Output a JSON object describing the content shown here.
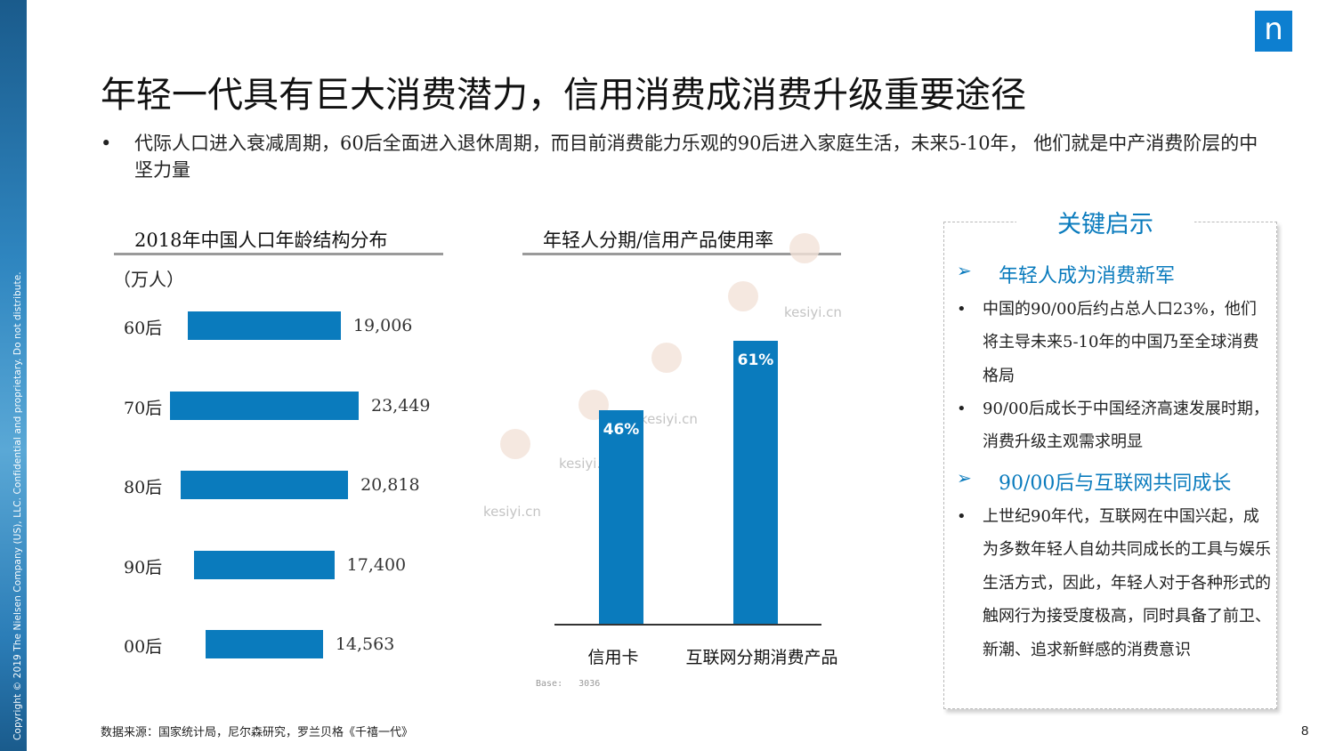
{
  "sidebar": {
    "copyright": "Copyright © 2019 The Nielsen Company (US), LLC. Confidential and proprietary. Do not distribute."
  },
  "logo": {
    "letter": "n"
  },
  "title": "年轻一代具有巨大消费潜力，信用消费成消费升级重要途径",
  "bullet": {
    "marker": "•",
    "text": "代际人口进入衰减周期，60后全面进入退休周期，而目前消费能力乐观的90后进入家庭生活，未来5-10年， 他们就是中产消费阶层的中坚力量"
  },
  "chart_data": [
    {
      "type": "bar",
      "orientation": "horizontal",
      "title": "2018年中国人口年龄结构分布",
      "unit": "（万人）",
      "categories": [
        "60后",
        "70后",
        "80后",
        "90后",
        "00后"
      ],
      "values": [
        19006,
        23449,
        20818,
        17400,
        14563
      ],
      "value_labels": [
        "19,006",
        "23,449",
        "20,818",
        "17,400",
        "14,563"
      ],
      "color": "#0a7bbd"
    },
    {
      "type": "bar",
      "orientation": "vertical",
      "title": "年轻人分期/信用产品使用率",
      "categories": [
        "信用卡",
        "互联网分期消费产品"
      ],
      "values": [
        46,
        61
      ],
      "value_labels": [
        "46%",
        "61%"
      ],
      "ylim": [
        0,
        100
      ],
      "base_label": "Base:   3036",
      "color": "#0a7bbd"
    }
  ],
  "watermark": [
    "kesiyi.cn",
    "kesiyi.cn",
    "kesiyi.cn",
    "kesiyi.cn"
  ],
  "insights": {
    "title": "关键启示",
    "arrow": "➢",
    "sections": [
      {
        "heading": "年轻人成为消费新军",
        "bullets": [
          "中国的90/00后约占总人口23%，他们将主导未来5-10年的中国乃至全球消费格局",
          "90/00后成长于中国经济高速发展时期，消费升级主观需求明显"
        ]
      },
      {
        "heading": "90/00后与互联网共同成长",
        "bullets": [
          "上世纪90年代，互联网在中国兴起，成为多数年轻人自幼共同成长的工具与娱乐生活方式，因此，年轻人对于各种形式的触网行为接受度极高，同时具备了前卫、新潮、追求新鲜感的消费意识"
        ]
      }
    ]
  },
  "footer": {
    "source": "数据来源：国家统计局，尼尔森研究，罗兰贝格《千禧一代》",
    "page": "8"
  }
}
